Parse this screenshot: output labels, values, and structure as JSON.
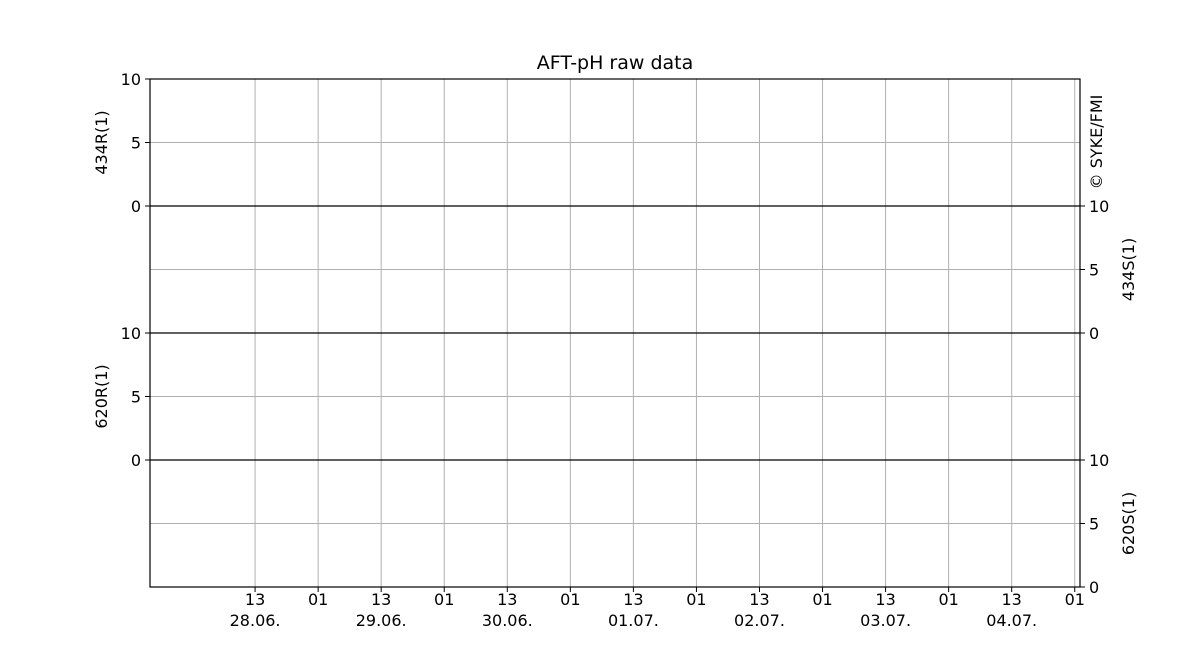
{
  "chart_data": {
    "type": "line",
    "title": "AFT-pH raw data",
    "credit": "© SYKE/FMI",
    "grid": true,
    "x_axis": {
      "range": [
        "2024-06-27T17:00",
        "2024-07-05T02:00"
      ],
      "hour_tick_labels": [
        "13",
        "01",
        "13",
        "01",
        "13",
        "01",
        "13",
        "01",
        "13",
        "01",
        "13",
        "01",
        "13",
        "01"
      ],
      "day_labels": [
        "28.06.",
        "29.06.",
        "30.06.",
        "01.07.",
        "02.07.",
        "03.07.",
        "04.07."
      ]
    },
    "panels": [
      {
        "name": "434R(1)",
        "axis_side": "left",
        "ylim": [
          0,
          10
        ],
        "yticks": [
          "0",
          "5",
          "10"
        ],
        "series": []
      },
      {
        "name": "434S(1)",
        "axis_side": "right",
        "ylim": [
          0,
          10
        ],
        "yticks": [
          "0",
          "5",
          "10"
        ],
        "series": []
      },
      {
        "name": "620R(1)",
        "axis_side": "left",
        "ylim": [
          0,
          10
        ],
        "yticks": [
          "0",
          "5",
          "10"
        ],
        "series": []
      },
      {
        "name": "620S(1)",
        "axis_side": "right",
        "ylim": [
          0,
          10
        ],
        "yticks": [
          "0",
          "5",
          "10"
        ],
        "series": []
      }
    ]
  }
}
